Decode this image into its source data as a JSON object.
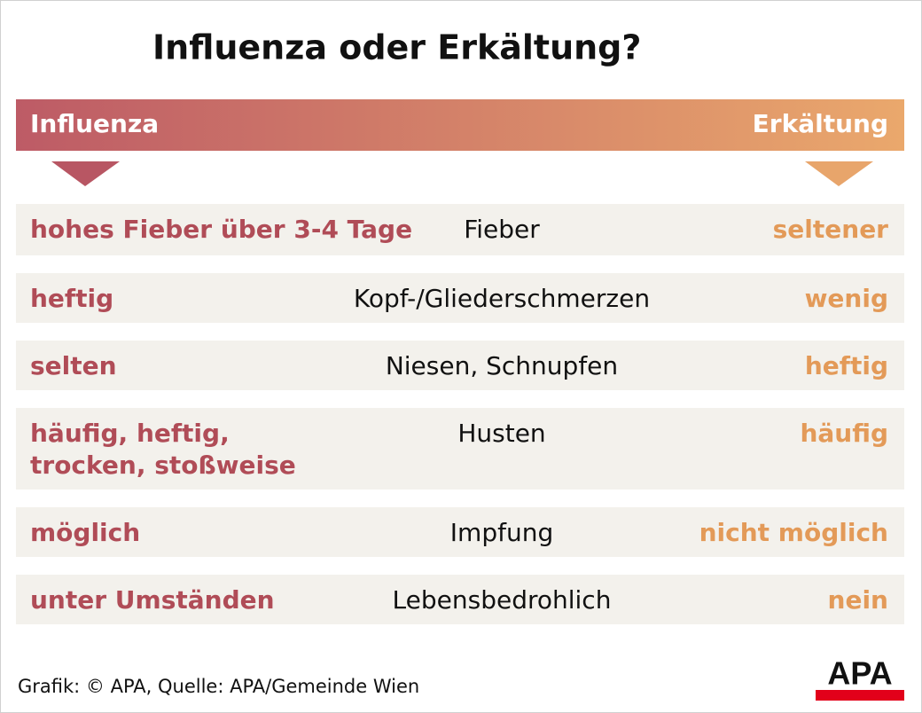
{
  "title": "Influenza oder Erkältung?",
  "header": {
    "left": "Influenza",
    "right": "Erkältung"
  },
  "rows": [
    {
      "left": [
        "hohes Fieber über 3-4 Tage"
      ],
      "middle": "Fieber",
      "right": "seltener"
    },
    {
      "left": [
        "heftig"
      ],
      "middle": "Kopf-/Gliederschmerzen",
      "right": "wenig"
    },
    {
      "left": [
        "selten"
      ],
      "middle": "Niesen, Schnupfen",
      "right": "heftig"
    },
    {
      "left": [
        "häufig, heftig,",
        "trocken, stoßweise"
      ],
      "middle": "Husten",
      "right": "häufig"
    },
    {
      "left": [
        "möglich"
      ],
      "middle": "Impfung",
      "right": "nicht möglich"
    },
    {
      "left": [
        "unter Umständen"
      ],
      "middle": "Lebensbedrohlich",
      "right": "nein"
    }
  ],
  "footer": {
    "source": "Grafik: © APA, Quelle: APA/Gemeinde Wien",
    "logo": "APA"
  }
}
